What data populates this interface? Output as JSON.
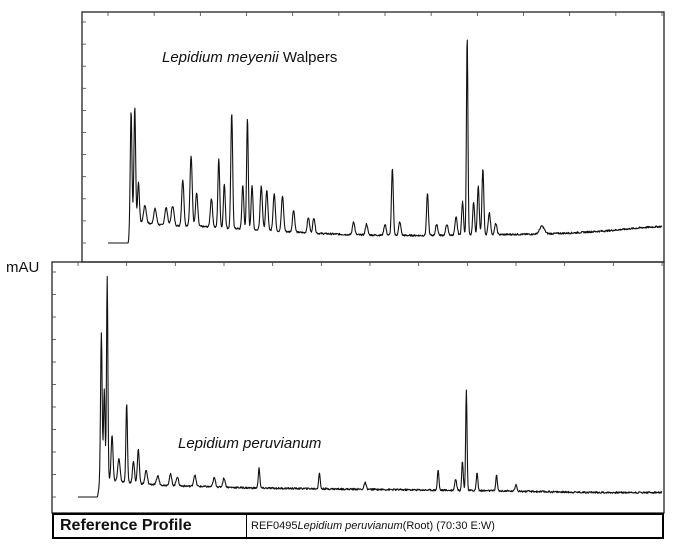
{
  "y_axis_label": "mAU",
  "footer": {
    "title": "Reference Profile",
    "ref_code": "REF0495 ",
    "species": "Lepidium peruvianum",
    "detail": "  (Root)  (70:30 E:W)"
  },
  "chart_data": [
    {
      "type": "line",
      "species_italic": "Lepidium meyenii",
      "species_suffix": " Walpers",
      "ylabel": "mAU",
      "xlim": [
        0,
        60
      ],
      "ylim": [
        0,
        10
      ],
      "grid": false,
      "baseline": [
        [
          0,
          0.0
        ],
        [
          2.2,
          0.0
        ],
        [
          2.5,
          1.0
        ],
        [
          4,
          0.9
        ],
        [
          6,
          0.8
        ],
        [
          10,
          0.75
        ],
        [
          14,
          0.65
        ],
        [
          18,
          0.55
        ],
        [
          22,
          0.45
        ],
        [
          26,
          0.38
        ],
        [
          30,
          0.35
        ],
        [
          34,
          0.34
        ],
        [
          38,
          0.36
        ],
        [
          42,
          0.38
        ],
        [
          46,
          0.4
        ],
        [
          50,
          0.45
        ],
        [
          54,
          0.55
        ],
        [
          58,
          0.7
        ],
        [
          60,
          0.75
        ]
      ],
      "peaks": [
        [
          2.5,
          5.0,
          0.09
        ],
        [
          2.9,
          5.2,
          0.09
        ],
        [
          3.3,
          1.8,
          0.1
        ],
        [
          4.0,
          0.8,
          0.15
        ],
        [
          5.1,
          0.7,
          0.15
        ],
        [
          6.3,
          0.8,
          0.15
        ],
        [
          7.0,
          0.9,
          0.15
        ],
        [
          8.1,
          2.1,
          0.12
        ],
        [
          9.0,
          3.2,
          0.12
        ],
        [
          9.6,
          1.5,
          0.12
        ],
        [
          11.2,
          1.3,
          0.12
        ],
        [
          12.0,
          3.1,
          0.1
        ],
        [
          12.6,
          2.0,
          0.1
        ],
        [
          13.4,
          5.2,
          0.1
        ],
        [
          14.6,
          2.0,
          0.1
        ],
        [
          15.1,
          5.0,
          0.09
        ],
        [
          15.6,
          2.0,
          0.1
        ],
        [
          16.6,
          2.0,
          0.12
        ],
        [
          17.2,
          1.8,
          0.12
        ],
        [
          18.0,
          1.7,
          0.12
        ],
        [
          18.9,
          1.6,
          0.12
        ],
        [
          20.1,
          1.0,
          0.12
        ],
        [
          21.7,
          0.7,
          0.12
        ],
        [
          22.3,
          0.7,
          0.12
        ],
        [
          26.6,
          0.6,
          0.12
        ],
        [
          28.0,
          0.5,
          0.12
        ],
        [
          30.0,
          0.5,
          0.12
        ],
        [
          30.8,
          3.0,
          0.1
        ],
        [
          31.6,
          0.6,
          0.12
        ],
        [
          34.6,
          1.9,
          0.1
        ],
        [
          35.6,
          0.5,
          0.12
        ],
        [
          36.7,
          0.5,
          0.12
        ],
        [
          37.7,
          0.8,
          0.12
        ],
        [
          38.4,
          1.5,
          0.1
        ],
        [
          38.9,
          9.0,
          0.08
        ],
        [
          39.6,
          1.5,
          0.1
        ],
        [
          40.1,
          2.2,
          0.1
        ],
        [
          40.6,
          3.0,
          0.1
        ],
        [
          41.3,
          1.0,
          0.12
        ],
        [
          42.0,
          0.5,
          0.12
        ],
        [
          47.0,
          0.35,
          0.25
        ]
      ]
    },
    {
      "type": "line",
      "species_italic": "Lepidium peruvianum",
      "species_suffix": "",
      "ylabel": "mAU",
      "xlim": [
        0,
        60
      ],
      "ylim": [
        0,
        10
      ],
      "grid": false,
      "baseline": [
        [
          0,
          0.0
        ],
        [
          2.0,
          0.0
        ],
        [
          2.3,
          0.8
        ],
        [
          4,
          0.7
        ],
        [
          6,
          0.6
        ],
        [
          10,
          0.5
        ],
        [
          14,
          0.45
        ],
        [
          18,
          0.4
        ],
        [
          22,
          0.38
        ],
        [
          26,
          0.36
        ],
        [
          30,
          0.34
        ],
        [
          34,
          0.32
        ],
        [
          38,
          0.3
        ],
        [
          42,
          0.28
        ],
        [
          46,
          0.25
        ],
        [
          50,
          0.22
        ],
        [
          54,
          0.2
        ],
        [
          58,
          0.2
        ],
        [
          60,
          0.2
        ]
      ],
      "peaks": [
        [
          2.4,
          6.5,
          0.08
        ],
        [
          2.7,
          4.0,
          0.08
        ],
        [
          3.0,
          9.0,
          0.07
        ],
        [
          3.5,
          2.0,
          0.1
        ],
        [
          4.2,
          1.0,
          0.12
        ],
        [
          5.0,
          3.5,
          0.08
        ],
        [
          5.7,
          1.0,
          0.1
        ],
        [
          6.2,
          1.5,
          0.1
        ],
        [
          7.0,
          0.6,
          0.12
        ],
        [
          8.2,
          0.4,
          0.12
        ],
        [
          9.5,
          0.5,
          0.12
        ],
        [
          10.2,
          0.4,
          0.12
        ],
        [
          12.0,
          0.5,
          0.12
        ],
        [
          14.0,
          0.4,
          0.12
        ],
        [
          15.0,
          0.4,
          0.12
        ],
        [
          18.6,
          0.9,
          0.08
        ],
        [
          24.8,
          0.7,
          0.08
        ],
        [
          29.5,
          0.3,
          0.1
        ],
        [
          37.0,
          0.9,
          0.08
        ],
        [
          38.8,
          0.5,
          0.1
        ],
        [
          39.5,
          1.3,
          0.08
        ],
        [
          39.9,
          4.5,
          0.07
        ],
        [
          41.0,
          0.8,
          0.08
        ],
        [
          43.0,
          0.7,
          0.08
        ],
        [
          45.0,
          0.3,
          0.1
        ]
      ]
    }
  ]
}
